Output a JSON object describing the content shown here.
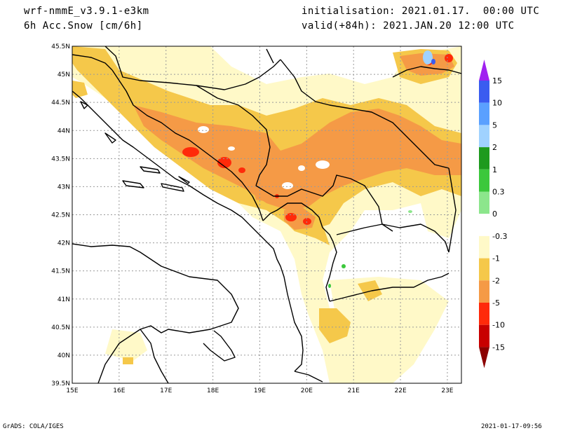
{
  "header": {
    "model": "wrf-nmmE_v3.9.1-e3km",
    "field": "6h Acc.Snow [cm/6h]",
    "init": "initialisation: 2021.01.17.  00:00 UTC",
    "valid": "valid(+84h): 2021.JAN.20 12:00 UTC"
  },
  "footer": {
    "left": "GrADS: COLA/IGES",
    "right": "2021-01-17-09:56"
  },
  "map": {
    "lon_labels": [
      "15E",
      "16E",
      "17E",
      "18E",
      "19E",
      "20E",
      "21E",
      "22E",
      "23E"
    ],
    "lat_labels": [
      "45.5N",
      "45N",
      "44.5N",
      "44N",
      "43.5N",
      "43N",
      "42.5N",
      "42N",
      "41.5N",
      "41N",
      "40.5N",
      "40N",
      "39.5N"
    ],
    "lon_range": [
      15,
      23.3
    ],
    "lat_range": [
      39.5,
      45.5
    ]
  },
  "colorbar": {
    "labels": [
      "15",
      "10",
      "5",
      "2",
      "1",
      "0.3",
      "0",
      "-0.3",
      "-1",
      "-2",
      "-5",
      "-10",
      "-15"
    ],
    "colors": [
      "#a020f0",
      "#3a5cf0",
      "#5aa0ff",
      "#a0d2ff",
      "#1e9a1e",
      "#3cc83c",
      "#8ce68c",
      "#ffffff",
      "#fff9c8",
      "#f5c84a",
      "#f59a46",
      "#ff2a0a",
      "#c80000",
      "#8c0000"
    ]
  },
  "fill_colors": {
    "light_yellow": "#fff9c8",
    "yellow": "#f5c84a",
    "orange": "#f59a46",
    "red": "#ff2a0a",
    "light_blue": "#a0d2ff",
    "green": "#3cc83c"
  }
}
